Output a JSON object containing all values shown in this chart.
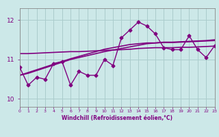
{
  "x": [
    0,
    1,
    2,
    3,
    4,
    5,
    6,
    7,
    8,
    9,
    10,
    11,
    12,
    13,
    14,
    15,
    16,
    17,
    18,
    19,
    20,
    21,
    22,
    23
  ],
  "windchill": [
    10.8,
    10.35,
    10.55,
    10.5,
    10.9,
    10.95,
    10.35,
    10.7,
    10.6,
    10.6,
    11.0,
    10.85,
    11.55,
    11.75,
    11.95,
    11.85,
    11.65,
    11.3,
    11.25,
    11.25,
    11.6,
    11.25,
    11.05,
    11.35
  ],
  "line1": [
    11.15,
    11.15,
    11.16,
    11.17,
    11.18,
    11.19,
    11.2,
    11.2,
    11.21,
    11.22,
    11.23,
    11.24,
    11.25,
    11.26,
    11.28,
    11.29,
    11.3,
    11.3,
    11.3,
    11.31,
    11.31,
    11.32,
    11.33,
    11.34
  ],
  "line2": [
    10.6,
    10.65,
    10.72,
    10.79,
    10.86,
    10.93,
    11.0,
    11.05,
    11.1,
    11.15,
    11.2,
    11.24,
    11.28,
    11.32,
    11.36,
    11.4,
    11.42,
    11.44,
    11.44,
    11.45,
    11.46,
    11.47,
    11.48,
    11.5
  ],
  "line3": [
    10.6,
    10.67,
    10.74,
    10.81,
    10.88,
    10.95,
    11.02,
    11.08,
    11.14,
    11.2,
    11.26,
    11.3,
    11.34,
    11.38,
    11.4,
    11.42,
    11.42,
    11.43,
    11.43,
    11.44,
    11.45,
    11.46,
    11.47,
    11.48
  ],
  "color_main": "#800080",
  "bg_color": "#cce8e8",
  "grid_color": "#aacccc",
  "xlabel": "Windchill (Refroidissement éolien,°C)",
  "ylim": [
    9.8,
    12.3
  ],
  "yticks": [
    10,
    11,
    12
  ],
  "xlim": [
    0,
    23
  ]
}
